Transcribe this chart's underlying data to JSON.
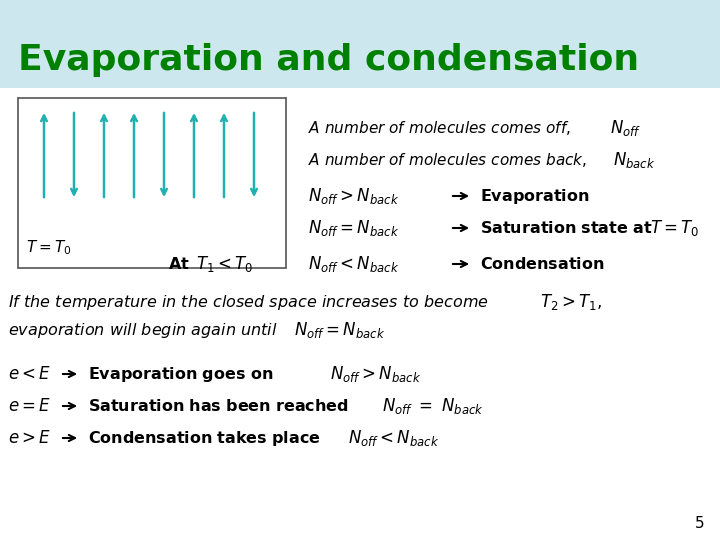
{
  "title": "Evaporation and condensation",
  "title_color": "#008000",
  "header_bg": "#cce8ee",
  "bg_color": "#ffffff",
  "arrow_color": "#20b0b0",
  "box_color": "#555555"
}
